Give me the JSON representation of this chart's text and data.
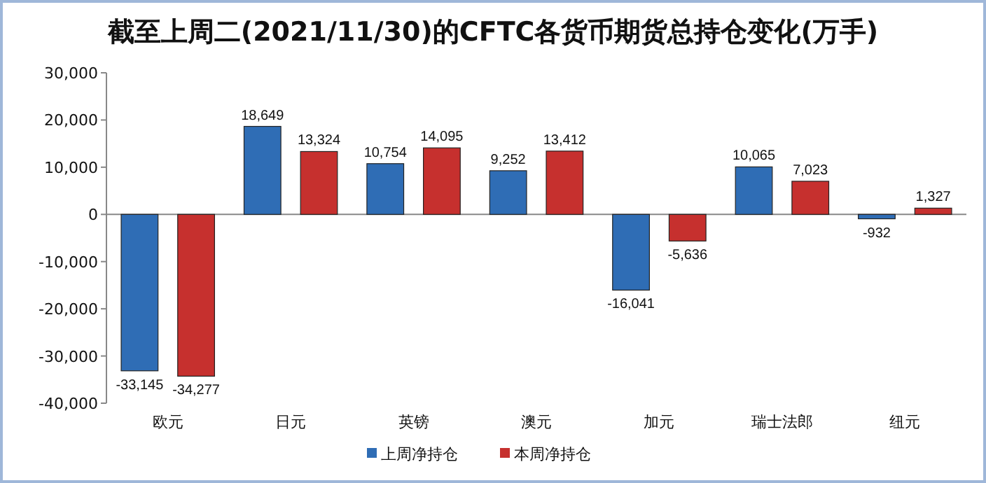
{
  "chart_data": {
    "type": "bar",
    "title": "截至上周二(2021/11/30)的CFTC各货币期货总持仓变化(万手)",
    "categories": [
      "欧元",
      "日元",
      "英镑",
      "澳元",
      "加元",
      "瑞士法郎",
      "纽元"
    ],
    "series": [
      {
        "name": "上周净持仓",
        "color": "#2f6db5",
        "values": [
          -33145,
          18649,
          10754,
          9252,
          -16041,
          10065,
          -932
        ],
        "value_labels": [
          "-33,145",
          "18,649",
          "10,754",
          "9,252",
          "-16,041",
          "10,065",
          "-932"
        ]
      },
      {
        "name": "本周净持仓",
        "color": "#c6302e",
        "values": [
          -34277,
          13324,
          14095,
          13412,
          -5636,
          7023,
          1327
        ],
        "value_labels": [
          "-34,277",
          "13,324",
          "14,095",
          "13,412",
          "-5,636",
          "7,023",
          "1,327"
        ]
      }
    ],
    "ylim": [
      -40000,
      30000
    ],
    "yticks": [
      {
        "value": -40000,
        "label": "-40,000"
      },
      {
        "value": -30000,
        "label": "-30,000"
      },
      {
        "value": -20000,
        "label": "-20,000"
      },
      {
        "value": -10000,
        "label": "-10,000"
      },
      0,
      {
        "value": 10000,
        "label": "10,000"
      },
      {
        "value": 20000,
        "label": "20,000"
      },
      {
        "value": 30000,
        "label": "30,000"
      }
    ],
    "legend": "bottom"
  }
}
